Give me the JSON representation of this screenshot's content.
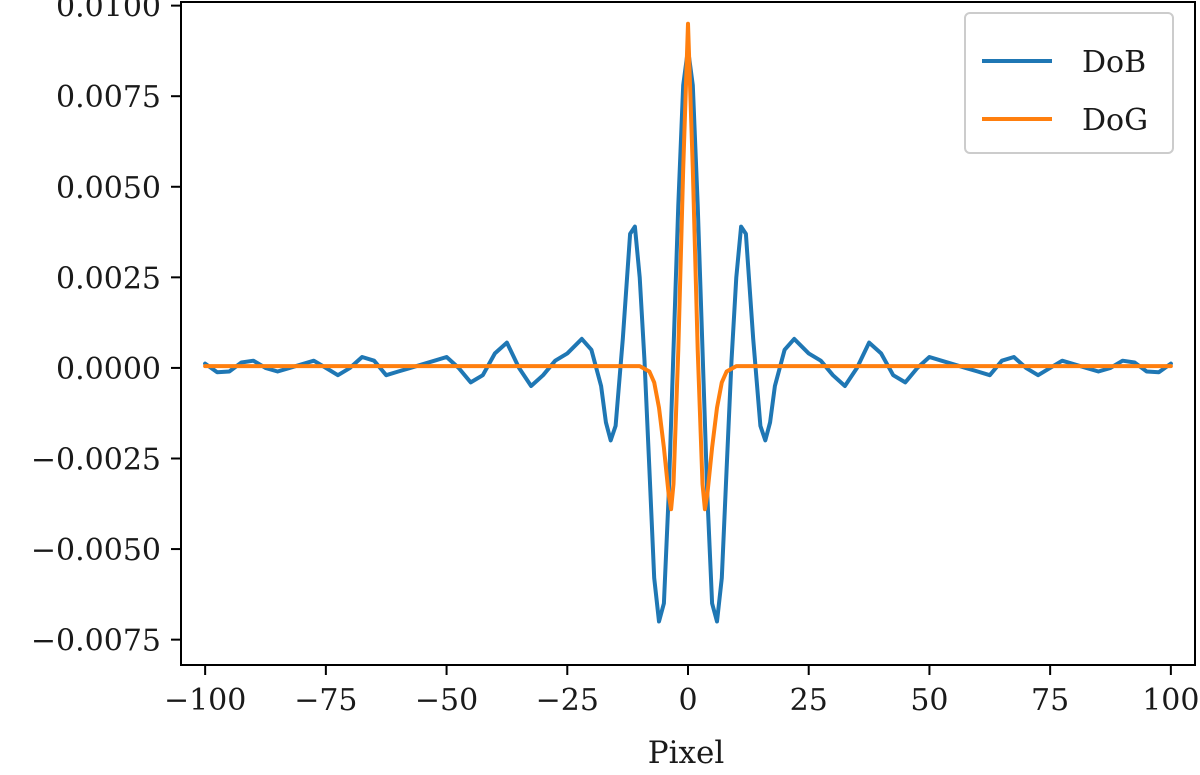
{
  "chart_data": {
    "type": "line",
    "title": "",
    "xlabel": "Pixel",
    "ylabel": "",
    "xlim": [
      -105,
      105
    ],
    "ylim": [
      -0.0082,
      0.0101
    ],
    "x_ticks": [
      -100,
      -75,
      -50,
      -25,
      0,
      25,
      50,
      75,
      100
    ],
    "x_tick_labels": [
      "−100",
      "−75",
      "−50",
      "−25",
      "0",
      "25",
      "50",
      "75",
      "100"
    ],
    "y_ticks": [
      0.01,
      0.0075,
      0.005,
      0.0025,
      0.0,
      -0.0025,
      -0.005,
      -0.0075
    ],
    "y_tick_labels": [
      "0.0100",
      "0.0075",
      "0.0050",
      "0.0025",
      "0.0000",
      "−0.0025",
      "−0.0050",
      "−0.0075"
    ],
    "grid": false,
    "legend_position": "top-right",
    "series": [
      {
        "name": "DoB",
        "color": "#1f77b4",
        "x": [
          -100,
          -97.5,
          -95,
          -92.5,
          -90,
          -87.5,
          -85,
          -82.5,
          -80,
          -77.5,
          -75,
          -72.5,
          -70,
          -67.5,
          -65,
          -62.5,
          -60,
          -57.5,
          -55,
          -52.5,
          -50,
          -47.5,
          -45,
          -42.5,
          -40,
          -37.5,
          -35,
          -32.5,
          -30,
          -27.5,
          -25,
          -22,
          -20,
          -18,
          -17,
          -16,
          -15,
          -13.5,
          -12,
          -11,
          -10,
          -9,
          -8,
          -7,
          -6,
          -5,
          -4,
          -3,
          -2,
          -1,
          0,
          1,
          2,
          3,
          4,
          5,
          6,
          7,
          8,
          9,
          10,
          11,
          12,
          13.5,
          15,
          16,
          17,
          18,
          20,
          22,
          25,
          27.5,
          30,
          32.5,
          35,
          37.5,
          40,
          42.5,
          45,
          47.5,
          50,
          52.5,
          55,
          57.5,
          60,
          62.5,
          65,
          67.5,
          70,
          72.5,
          75,
          77.5,
          80,
          82.5,
          85,
          87.5,
          90,
          92.5,
          95,
          97.5,
          100
        ],
        "y": [
          0.00012,
          -0.00012,
          -0.0001,
          0.00015,
          0.0002,
          0.0,
          -0.0001,
          0.0,
          0.0001,
          0.0002,
          0.0,
          -0.0002,
          0.0,
          0.0003,
          0.0002,
          -0.0002,
          -0.0001,
          0.0,
          0.0001,
          0.0002,
          0.0003,
          0.0,
          -0.0004,
          -0.0002,
          0.0004,
          0.0007,
          0.0,
          -0.0005,
          -0.0002,
          0.0002,
          0.0004,
          0.0008,
          0.0005,
          -0.0005,
          -0.0015,
          -0.002,
          -0.0016,
          0.0008,
          0.0037,
          0.0039,
          0.0025,
          0.0002,
          -0.0028,
          -0.0058,
          -0.007,
          -0.0065,
          -0.0035,
          0.0005,
          0.0045,
          0.0078,
          0.0088,
          0.0078,
          0.0045,
          0.0005,
          -0.0035,
          -0.0065,
          -0.007,
          -0.0058,
          -0.0028,
          0.0002,
          0.0025,
          0.0039,
          0.0037,
          0.0008,
          -0.0016,
          -0.002,
          -0.0015,
          -0.0005,
          0.0005,
          0.0008,
          0.0004,
          0.0002,
          -0.0002,
          -0.0005,
          0.0,
          0.0007,
          0.0004,
          -0.0002,
          -0.0004,
          0.0,
          0.0003,
          0.0002,
          0.0001,
          0.0,
          -0.0001,
          -0.0002,
          0.0002,
          0.0003,
          0.0,
          -0.0002,
          0.0,
          0.0002,
          0.0001,
          0.0,
          -0.0001,
          0.0,
          0.0002,
          0.00015,
          -0.0001,
          -0.00012,
          0.00012
        ]
      },
      {
        "name": "DoG",
        "color": "#ff7f0e",
        "x": [
          -100,
          -20,
          -10,
          -8,
          -7,
          -6,
          -5,
          -4,
          -3.5,
          -3,
          -2,
          -1,
          0,
          1,
          2,
          3,
          3.5,
          4,
          5,
          6,
          7,
          8,
          10,
          20,
          100
        ],
        "y": [
          5e-05,
          5e-05,
          5e-05,
          -0.0001,
          -0.0004,
          -0.0011,
          -0.0022,
          -0.0035,
          -0.0039,
          -0.0032,
          0.0005,
          0.0055,
          0.0095,
          0.0055,
          0.0005,
          -0.0032,
          -0.0039,
          -0.0035,
          -0.0022,
          -0.0011,
          -0.0004,
          -0.0001,
          5e-05,
          5e-05,
          5e-05
        ]
      }
    ]
  }
}
